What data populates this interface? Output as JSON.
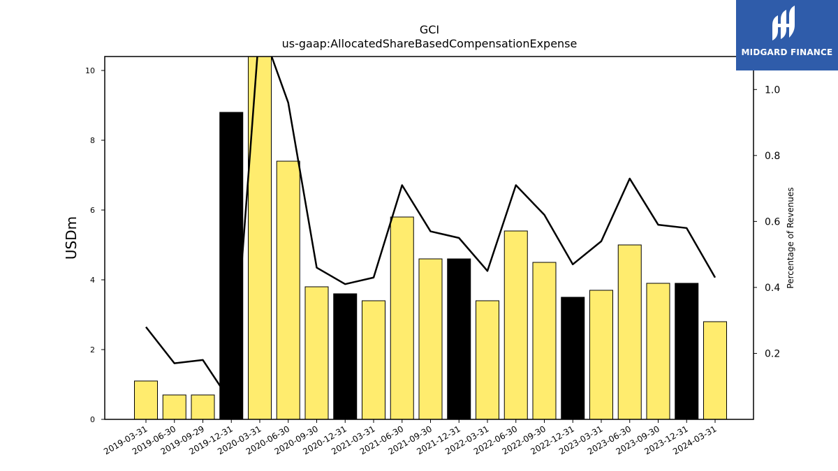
{
  "logo": {
    "text": "MIDGARD FINANCE",
    "background": "#2f5caa",
    "icon": "midgard-logo-icon"
  },
  "chart_data": {
    "type": "bar",
    "title": "GCI",
    "subtitle": "us-gaap:AllocatedShareBasedCompensationExpense",
    "ylabel": "USDm",
    "y2label": "Percentage of Revenues",
    "ylim": [
      0,
      10.4
    ],
    "y2lim": [
      0,
      1.1
    ],
    "yticks": [
      0,
      2,
      4,
      6,
      8,
      10
    ],
    "y2ticks": [
      0.2,
      0.4,
      0.6,
      0.8,
      1.0
    ],
    "grid": false,
    "categories": [
      "2019-03-31",
      "2019-06-30",
      "2019-09-29",
      "2019-12-31",
      "2020-03-31",
      "2020-06-30",
      "2020-09-30",
      "2020-12-31",
      "2021-03-31",
      "2021-06-30",
      "2021-09-30",
      "2021-12-31",
      "2022-03-31",
      "2022-06-30",
      "2022-09-30",
      "2022-12-31",
      "2023-03-31",
      "2023-06-30",
      "2023-09-30",
      "2023-12-31",
      "2024-03-31"
    ],
    "series": [
      {
        "type": "bar",
        "values": [
          1.1,
          0.7,
          0.7,
          8.8,
          10.5,
          7.4,
          3.8,
          3.6,
          3.4,
          5.8,
          4.6,
          4.6,
          3.4,
          5.4,
          4.5,
          3.5,
          3.7,
          5.0,
          3.9,
          3.9,
          2.8
        ],
        "highlight": [
          false,
          false,
          false,
          true,
          false,
          false,
          false,
          true,
          false,
          false,
          false,
          true,
          false,
          false,
          false,
          true,
          false,
          false,
          false,
          true,
          false
        ]
      },
      {
        "type": "line",
        "axis": "right",
        "values": [
          0.28,
          0.17,
          0.18,
          0.05,
          1.2,
          0.96,
          0.46,
          0.41,
          0.43,
          0.71,
          0.57,
          0.55,
          0.45,
          0.71,
          0.62,
          0.47,
          0.54,
          0.73,
          0.59,
          0.58,
          0.43
        ]
      }
    ],
    "colors": {
      "bar": "#ffec6e",
      "highlight_bar": "#000000",
      "line": "#000000"
    }
  }
}
